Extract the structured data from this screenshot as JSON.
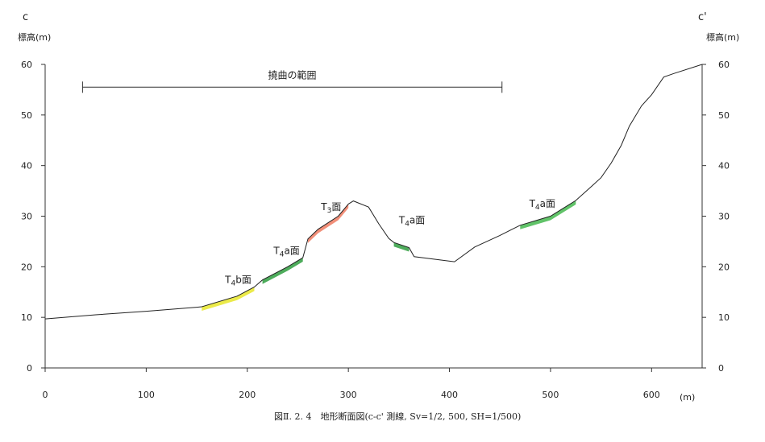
{
  "chart_data": {
    "type": "line",
    "corner_labels": {
      "left": "c",
      "right": "c'"
    },
    "ylabel_left": "標高(m)",
    "ylabel_right": "標高(m)",
    "xlabel": "(m)",
    "caption": "図Ⅱ. 2. 4　地形断面図(c-c' 測線, Sv=1/2, 500, SH=1/500)",
    "xlim": [
      0,
      650
    ],
    "ylim": [
      0,
      60
    ],
    "x_ticks": [
      "0",
      "100",
      "200",
      "300",
      "400",
      "500",
      "600"
    ],
    "x_tick_values": [
      0,
      100,
      200,
      300,
      400,
      500,
      600
    ],
    "y_ticks": [
      "0",
      "10",
      "20",
      "30",
      "40",
      "50",
      "60"
    ],
    "y_tick_values": [
      0,
      10,
      20,
      30,
      40,
      50,
      60
    ],
    "grid": false,
    "profile": {
      "x": [
        0,
        50,
        100,
        150,
        155,
        190,
        207,
        215,
        240,
        255,
        260,
        270,
        290,
        300,
        305,
        320,
        330,
        340,
        345,
        360,
        365,
        405,
        425,
        450,
        470,
        500,
        525,
        540,
        550,
        560,
        570,
        578,
        590,
        600,
        612,
        622,
        650
      ],
      "y": [
        9.7,
        10.5,
        11.2,
        12,
        12.1,
        14.2,
        16,
        17.4,
        20,
        21.8,
        25.5,
        27.4,
        30,
        32.4,
        33,
        31.8,
        28.5,
        25.6,
        24.8,
        23.8,
        22,
        21,
        23.9,
        26.2,
        28.2,
        30,
        33.1,
        35.8,
        37.6,
        40.5,
        44,
        47.8,
        51.8,
        54,
        57.5,
        58.2,
        60
      ]
    },
    "surfaces": [
      {
        "label_base": "T",
        "label_sub": "4",
        "label_suffix": "b面",
        "color": "#e8e62a",
        "x_range": [
          155,
          207
        ],
        "label_at": [
          178,
          16.8
        ]
      },
      {
        "label_base": "T",
        "label_sub": "4",
        "label_suffix": "a面",
        "color": "#2f9e3f",
        "x_range": [
          215,
          255
        ],
        "label_at": [
          226,
          22.5
        ]
      },
      {
        "label_base": "T",
        "label_sub": "3",
        "label_suffix": "面",
        "color": "#ee7b62",
        "x_range": [
          260,
          300
        ],
        "label_at": [
          273,
          31.2
        ]
      },
      {
        "label_base": "T",
        "label_sub": "4",
        "label_suffix": "a面",
        "color": "#2f9e3f",
        "x_range": [
          345,
          360
        ],
        "label_at": [
          350,
          28.6
        ]
      },
      {
        "label_base": "T",
        "label_sub": "4",
        "label_suffix": "a面",
        "color": "#45b84f",
        "x_range": [
          470,
          525
        ],
        "label_at": [
          479,
          31.8
        ]
      }
    ],
    "bracket": {
      "label": "撓曲の範囲",
      "x_range": [
        37,
        452
      ],
      "y": 55.5
    }
  }
}
